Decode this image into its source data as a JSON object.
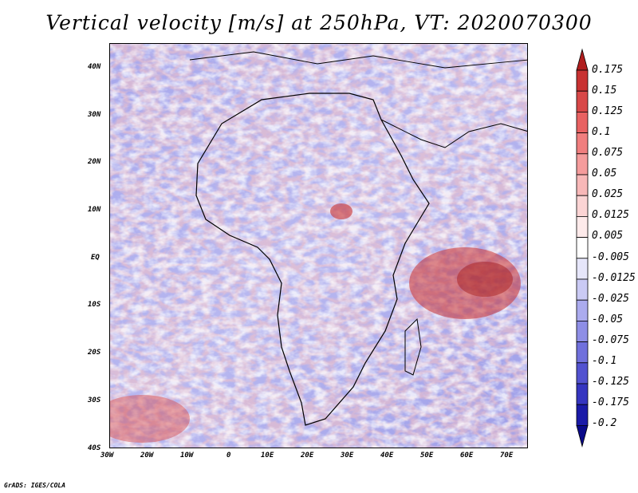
{
  "title": "Vertical velocity [m/s] at 250hPa, VT: 2020070300",
  "footer": "GrADS: IGES/COLA",
  "map": {
    "lon_ticks": [
      "30W",
      "20W",
      "10W",
      "0",
      "10E",
      "20E",
      "30E",
      "40E",
      "50E",
      "60E",
      "70E"
    ],
    "lat_ticks": [
      "40N",
      "30N",
      "20N",
      "10N",
      "EQ",
      "10S",
      "20S",
      "30S",
      "40S"
    ]
  },
  "colorbar": {
    "labels": [
      "0.175",
      "0.15",
      "0.125",
      "0.1",
      "0.075",
      "0.05",
      "0.025",
      "0.0125",
      "0.005",
      "-0.005",
      "-0.0125",
      "-0.025",
      "-0.05",
      "-0.075",
      "-0.1",
      "-0.125",
      "-0.175",
      "-0.2"
    ],
    "colors": [
      "#b01e1e",
      "#c83232",
      "#d84848",
      "#e86262",
      "#f07e7e",
      "#f59c9c",
      "#f8b8b8",
      "#fbd4d4",
      "#fdeaea",
      "#ffffff",
      "#e6e6fa",
      "#cacaf4",
      "#ababee",
      "#8e8ee6",
      "#7070dc",
      "#5252d0",
      "#3535c0",
      "#1a1aa8",
      "#0a0a8a"
    ]
  }
}
